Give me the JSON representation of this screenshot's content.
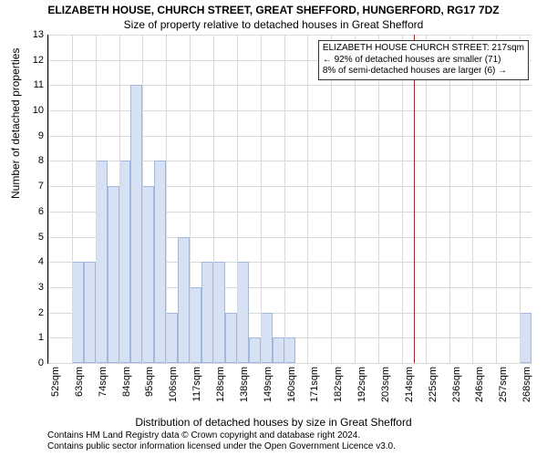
{
  "chart": {
    "type": "histogram",
    "title_main": "ELIZABETH HOUSE, CHURCH STREET, GREAT SHEFFORD, HUNGERFORD, RG17 7DZ",
    "title_sub": "Size of property relative to detached houses in Great Shefford",
    "ylabel": "Number of detached properties",
    "xlabel": "Distribution of detached houses by size in Great Shefford",
    "ylim": [
      0,
      13
    ],
    "yticks": [
      0,
      1,
      2,
      3,
      4,
      5,
      6,
      7,
      8,
      9,
      10,
      11,
      12,
      13
    ],
    "xtick_labels": [
      "52sqm",
      "63sqm",
      "74sqm",
      "84sqm",
      "95sqm",
      "106sqm",
      "117sqm",
      "128sqm",
      "138sqm",
      "149sqm",
      "160sqm",
      "171sqm",
      "182sqm",
      "192sqm",
      "203sqm",
      "214sqm",
      "225sqm",
      "236sqm",
      "246sqm",
      "257sqm",
      "268sqm"
    ],
    "bars": [
      0,
      0,
      4,
      4,
      8,
      7,
      8,
      11,
      7,
      8,
      2,
      5,
      3,
      4,
      4,
      2,
      4,
      1,
      2,
      1,
      1,
      0,
      0,
      0,
      0,
      0,
      0,
      0,
      0,
      0,
      0,
      0,
      0,
      0,
      0,
      0,
      0,
      0,
      0,
      0,
      2
    ],
    "bar_fill": "#d7e1f4",
    "bar_border": "#a0b8e0",
    "grid_color": "#d9d9d9",
    "background_color": "#ffffff",
    "marker_line_color": "#ff0000",
    "marker_line_bin_index": 31,
    "annotation": {
      "line1": "ELIZABETH HOUSE CHURCH STREET: 217sqm",
      "line2": "← 92% of detached houses are smaller (71)",
      "line3": "8% of semi-detached houses are larger (6) →"
    },
    "footer_line1": "Contains HM Land Registry data © Crown copyright and database right 2024.",
    "footer_line2": "Contains public sector information licensed under the Open Government Licence v3.0.",
    "title_fontsize": 12,
    "label_fontsize": 12,
    "tick_fontsize": 11,
    "annotation_fontsize": 10,
    "footer_fontsize": 10
  }
}
